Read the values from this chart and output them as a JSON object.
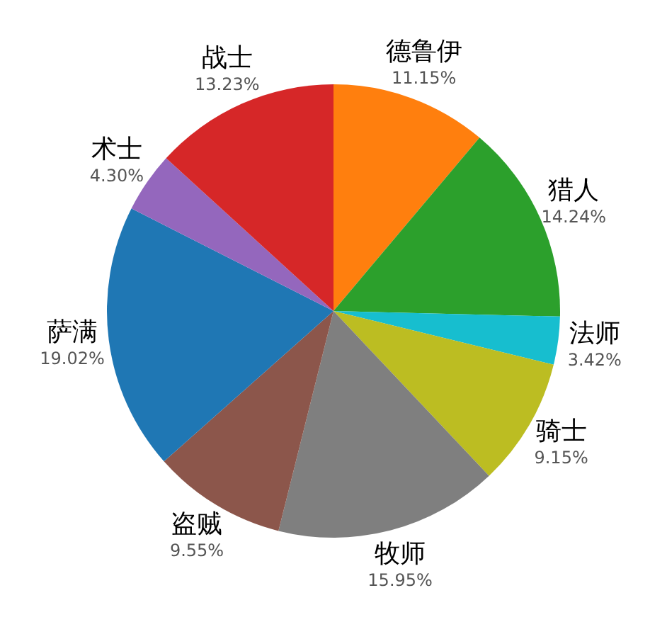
{
  "chart_data": {
    "type": "pie",
    "categories": [
      "德鲁伊",
      "猎人",
      "法师",
      "骑士",
      "牧师",
      "盗贼",
      "萨满",
      "术士",
      "战士"
    ],
    "values": [
      11.15,
      14.24,
      3.42,
      9.15,
      15.95,
      9.55,
      19.02,
      4.3,
      13.23
    ],
    "colors": [
      "#ff7f0e",
      "#2ca02c",
      "#17becf",
      "#bcbd22",
      "#7f7f7f",
      "#8c564b",
      "#1f77b4",
      "#9467bd",
      "#d62728"
    ],
    "value_labels": [
      "11.15%",
      "14.24%",
      "3.42%",
      "9.15%",
      "15.95%",
      "9.55%",
      "19.02%",
      "4.30%",
      "13.23%"
    ]
  }
}
